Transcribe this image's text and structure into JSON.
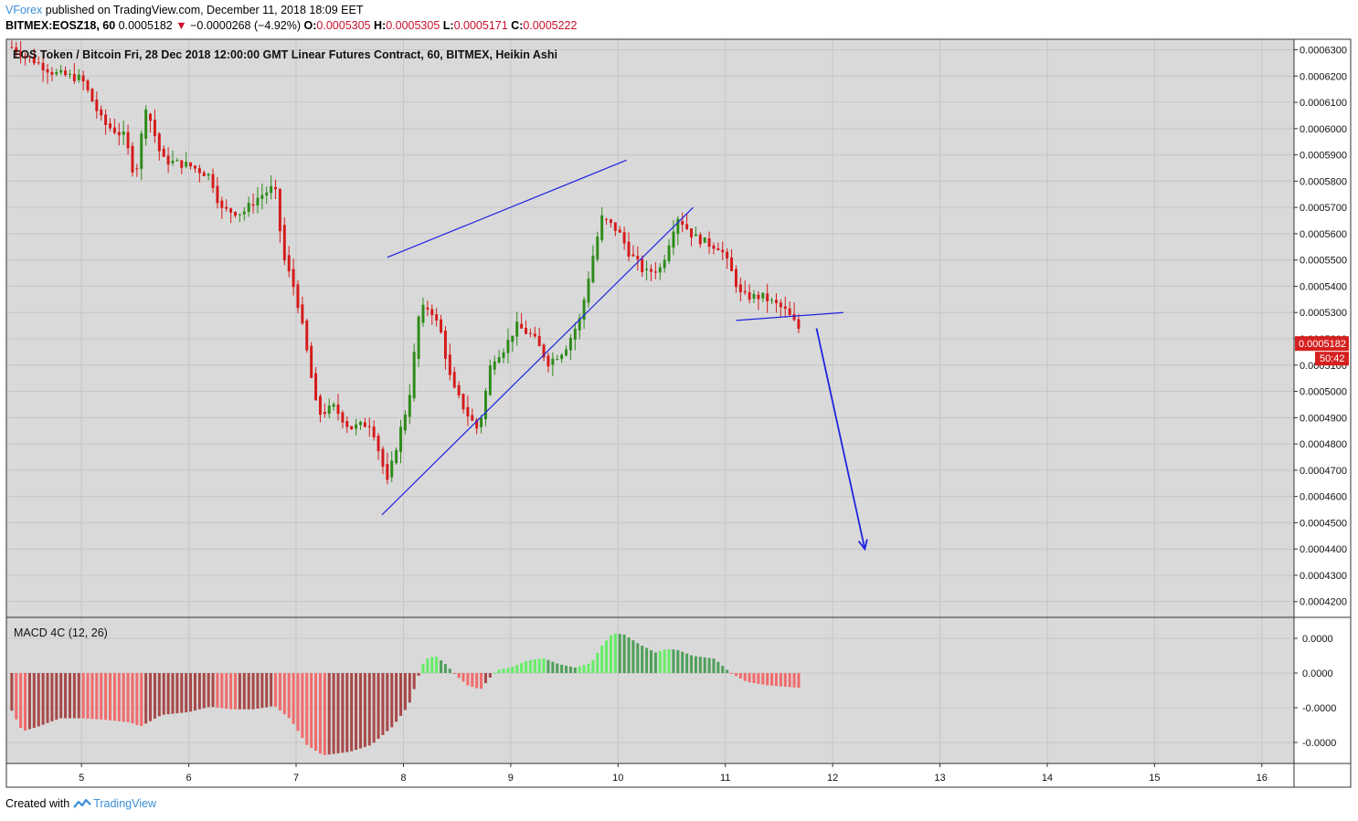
{
  "header": {
    "author": "VForex",
    "published_text": "published on TradingView.com, December 11, 2018 18:09 EET",
    "symbol": "BITMEX:EOSZ18, 60",
    "last": "0.0005182",
    "change": "−0.0000268 (−4.92%)",
    "open_label": "O:",
    "open": "0.0005305",
    "high_label": "H:",
    "high": "0.0005305",
    "low_label": "L:",
    "low": "0.0005171",
    "close_label": "C:",
    "close": "0.0005222"
  },
  "footer": {
    "created_with": "Created with",
    "brand": "TradingView"
  },
  "colors": {
    "panel_bg": "#d9d9d9",
    "grid": "#c6c6c6",
    "bull": "#2e8b19",
    "bear": "#d61a1a",
    "trendline": "#1f24e0",
    "price_tag": "#d62020",
    "macd_bright_red": "#f26b6b",
    "macd_dark_red": "#a84848",
    "macd_bright_green": "#66ee66",
    "macd_dark_green": "#4f9f5a"
  },
  "chart_data": [
    {
      "type": "candlestick",
      "title": "EOS Token / Bitcoin Fri, 28 Dec 2018 12:00:00 GMT Linear Futures Contract, 60, BITMEX, Heikin Ashi",
      "x_ticks": [
        "5",
        "6",
        "7",
        "8",
        "9",
        "10",
        "11",
        "12",
        "13",
        "14",
        "15",
        "16"
      ],
      "x_range_days": [
        4.3,
        16.3
      ],
      "y_ticks": [
        "0.0006300",
        "0.0006200",
        "0.0006100",
        "0.0006000",
        "0.0005900",
        "0.0005800",
        "0.0005700",
        "0.0005600",
        "0.0005500",
        "0.0005400",
        "0.0005300",
        "0.0005200",
        "0.0005100",
        "0.0005000",
        "0.0004900",
        "0.0004800",
        "0.0004700",
        "0.0004600",
        "0.0004500",
        "0.0004400",
        "0.0004300",
        "0.0004200"
      ],
      "ylim": [
        0.000414,
        0.000634
      ],
      "last_price_label": "0.0005182",
      "countdown_label": "50:42",
      "grid": true,
      "path_anchors": [
        [
          4.35,
          0.000631
        ],
        [
          4.55,
          0.000626
        ],
        [
          4.75,
          0.000621
        ],
        [
          5.0,
          0.000619
        ],
        [
          5.2,
          0.000602
        ],
        [
          5.4,
          0.000597
        ],
        [
          5.5,
          0.000581
        ],
        [
          5.6,
          0.000609
        ],
        [
          5.75,
          0.000588
        ],
        [
          6.0,
          0.000586
        ],
        [
          6.2,
          0.000582
        ],
        [
          6.3,
          0.000569
        ],
        [
          6.5,
          0.000568
        ],
        [
          6.65,
          0.000574
        ],
        [
          6.8,
          0.000578
        ],
        [
          6.88,
          0.000551
        ],
        [
          7.0,
          0.000537
        ],
        [
          7.1,
          0.000515
        ],
        [
          7.2,
          0.000491
        ],
        [
          7.35,
          0.000494
        ],
        [
          7.5,
          0.000486
        ],
        [
          7.7,
          0.000488
        ],
        [
          7.85,
          0.000465
        ],
        [
          7.95,
          0.000482
        ],
        [
          8.05,
          0.000497
        ],
        [
          8.15,
          0.000531
        ],
        [
          8.25,
          0.000532
        ],
        [
          8.35,
          0.000522
        ],
        [
          8.45,
          0.000502
        ],
        [
          8.6,
          0.000491
        ],
        [
          8.7,
          0.000485
        ],
        [
          8.82,
          0.000512
        ],
        [
          8.95,
          0.000517
        ],
        [
          9.05,
          0.000525
        ],
        [
          9.2,
          0.000521
        ],
        [
          9.35,
          0.000511
        ],
        [
          9.5,
          0.000516
        ],
        [
          9.65,
          0.000528
        ],
        [
          9.75,
          0.000549
        ],
        [
          9.85,
          0.000566
        ],
        [
          10.0,
          0.000561
        ],
        [
          10.1,
          0.000553
        ],
        [
          10.25,
          0.000545
        ],
        [
          10.4,
          0.000547
        ],
        [
          10.55,
          0.000567
        ],
        [
          10.7,
          0.000559
        ],
        [
          10.85,
          0.000556
        ],
        [
          10.95,
          0.000555
        ],
        [
          11.05,
          0.000546
        ],
        [
          11.15,
          0.000536
        ],
        [
          11.35,
          0.000536
        ],
        [
          11.55,
          0.000531
        ],
        [
          11.72,
          0.000522
        ]
      ],
      "trendlines": [
        {
          "name": "upper-wedge-line",
          "from": [
            7.85,
            0.000551
          ],
          "to": [
            10.08,
            0.000588
          ]
        },
        {
          "name": "lower-wedge-line",
          "from": [
            7.8,
            0.000453
          ],
          "to": [
            10.7,
            0.00057
          ]
        },
        {
          "name": "support-line",
          "from": [
            11.1,
            0.000527
          ],
          "to": [
            12.1,
            0.00053
          ]
        },
        {
          "name": "projection-arrow",
          "from": [
            11.85,
            0.000524
          ],
          "to": [
            12.3,
            0.00044
          ]
        }
      ]
    },
    {
      "type": "bar",
      "title": "MACD 4C (12, 26)",
      "y_ticks": [
        "0.0000",
        "0.0000",
        "-0.0000",
        "-0.0000"
      ],
      "histogram_anchors": [
        [
          4.35,
          -0.55
        ],
        [
          4.45,
          -0.85
        ],
        [
          4.6,
          -0.78
        ],
        [
          4.8,
          -0.66
        ],
        [
          5.0,
          -0.66
        ],
        [
          5.2,
          -0.68
        ],
        [
          5.45,
          -0.72
        ],
        [
          5.55,
          -0.78
        ],
        [
          5.75,
          -0.61
        ],
        [
          6.0,
          -0.57
        ],
        [
          6.2,
          -0.49
        ],
        [
          6.4,
          -0.53
        ],
        [
          6.6,
          -0.53
        ],
        [
          6.8,
          -0.48
        ],
        [
          6.95,
          -0.68
        ],
        [
          7.1,
          -1.05
        ],
        [
          7.25,
          -1.2
        ],
        [
          7.5,
          -1.15
        ],
        [
          7.7,
          -1.05
        ],
        [
          7.9,
          -0.78
        ],
        [
          8.05,
          -0.47
        ],
        [
          8.15,
          0.0
        ],
        [
          8.2,
          0.2
        ],
        [
          8.3,
          0.25
        ],
        [
          8.4,
          0.12
        ],
        [
          8.5,
          -0.05
        ],
        [
          8.6,
          -0.18
        ],
        [
          8.72,
          -0.24
        ],
        [
          8.8,
          -0.08
        ],
        [
          8.88,
          0.05
        ],
        [
          9.0,
          0.08
        ],
        [
          9.15,
          0.18
        ],
        [
          9.3,
          0.22
        ],
        [
          9.45,
          0.13
        ],
        [
          9.6,
          0.08
        ],
        [
          9.75,
          0.15
        ],
        [
          9.85,
          0.4
        ],
        [
          9.95,
          0.58
        ],
        [
          10.05,
          0.57
        ],
        [
          10.2,
          0.42
        ],
        [
          10.35,
          0.3
        ],
        [
          10.45,
          0.35
        ],
        [
          10.55,
          0.34
        ],
        [
          10.7,
          0.25
        ],
        [
          10.9,
          0.21
        ],
        [
          11.05,
          0.0
        ],
        [
          11.2,
          -0.13
        ],
        [
          11.4,
          -0.18
        ],
        [
          11.72,
          -0.22
        ]
      ]
    }
  ]
}
